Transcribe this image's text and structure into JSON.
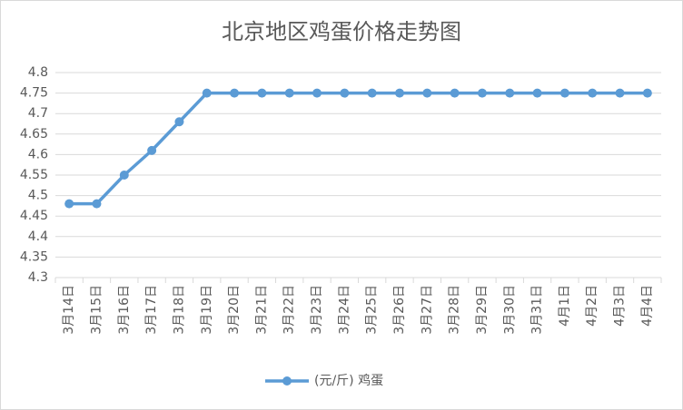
{
  "chart_data": {
    "type": "line",
    "title": "北京地区鸡蛋价格走势图",
    "categories": [
      "3月14日",
      "3月15日",
      "3月16日",
      "3月17日",
      "3月18日",
      "3月19日",
      "3月20日",
      "3月21日",
      "3月22日",
      "3月23日",
      "3月24日",
      "3月25日",
      "3月26日",
      "3月27日",
      "3月28日",
      "3月29日",
      "3月30日",
      "3月31日",
      "4月1日",
      "4月2日",
      "4月3日",
      "4月4日"
    ],
    "series": [
      {
        "name": "(元/斤) 鸡蛋",
        "color": "#5b9bd5",
        "values": [
          4.48,
          4.48,
          4.55,
          4.61,
          4.68,
          4.75,
          4.75,
          4.75,
          4.75,
          4.75,
          4.75,
          4.75,
          4.75,
          4.75,
          4.75,
          4.75,
          4.75,
          4.75,
          4.75,
          4.75,
          4.75,
          4.75
        ]
      }
    ],
    "ylim": [
      4.3,
      4.8
    ],
    "yticks": [
      4.3,
      4.35,
      4.4,
      4.45,
      4.5,
      4.55,
      4.6,
      4.65,
      4.7,
      4.75,
      4.8
    ],
    "grid": true,
    "legend": "bottom"
  }
}
